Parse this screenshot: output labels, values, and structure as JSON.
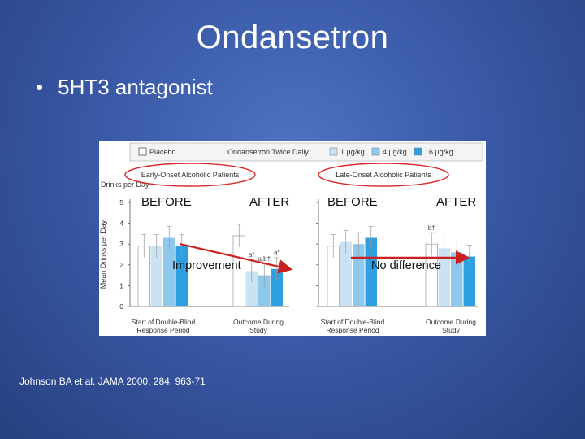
{
  "slide": {
    "title": "Ondansetron",
    "bullet": "5HT3 antagonist",
    "citation": "Johnson BA et al. JAMA 2000; 284: 963-71"
  },
  "overlay": {
    "left_before": "BEFORE",
    "left_after": "AFTER",
    "right_before": "BEFORE",
    "right_after": "AFTER",
    "improvement": "Improvement",
    "no_difference": "No difference"
  },
  "colors": {
    "placebo": "#ffffff",
    "dose1": "#c9e3f3",
    "dose4": "#8ec8ec",
    "dose16": "#2e9fe0",
    "arrow": "#cc1f1f",
    "highlight_circle": "#d62a2a"
  },
  "chart_data": {
    "type": "bar",
    "legend": {
      "placebo": "Placebo",
      "group_label": "Ondansetron Twice Daily",
      "doses": [
        "1 μg/kg",
        "4 μg/kg",
        "16 μg/kg"
      ]
    },
    "ylabel": "Mean Drinks per Day",
    "ylabel_top": "Drinks per Day",
    "ylim": [
      0,
      5
    ],
    "yticks": [
      0,
      1,
      2,
      3,
      4,
      5
    ],
    "categories": [
      "Start of Double-Blind Response Period",
      "Outcome During Study"
    ],
    "panels": [
      {
        "title": "Early-Onset Alcoholic Patients",
        "series": [
          {
            "name": "Placebo",
            "values": [
              2.9,
              3.4
            ]
          },
          {
            "name": "1 μg/kg",
            "values": [
              2.9,
              1.7
            ]
          },
          {
            "name": "4 μg/kg",
            "values": [
              3.3,
              1.5
            ]
          },
          {
            "name": "16 μg/kg",
            "values": [
              2.9,
              1.8
            ]
          }
        ],
        "annotations": [
          {
            "category": 1,
            "series": 1,
            "text": "a*"
          },
          {
            "category": 1,
            "series": 2,
            "text": "a,b†"
          },
          {
            "category": 1,
            "series": 3,
            "text": "a*"
          }
        ]
      },
      {
        "title": "Late-Onset Alcoholic Patients",
        "series": [
          {
            "name": "Placebo",
            "values": [
              2.9,
              3.0
            ]
          },
          {
            "name": "1 μg/kg",
            "values": [
              3.1,
              2.8
            ]
          },
          {
            "name": "4 μg/kg",
            "values": [
              3.0,
              2.6
            ]
          },
          {
            "name": "16 μg/kg",
            "values": [
              3.3,
              2.4
            ]
          }
        ],
        "annotations": [
          {
            "category": 1,
            "series": 0,
            "text": "b†"
          }
        ]
      }
    ]
  }
}
